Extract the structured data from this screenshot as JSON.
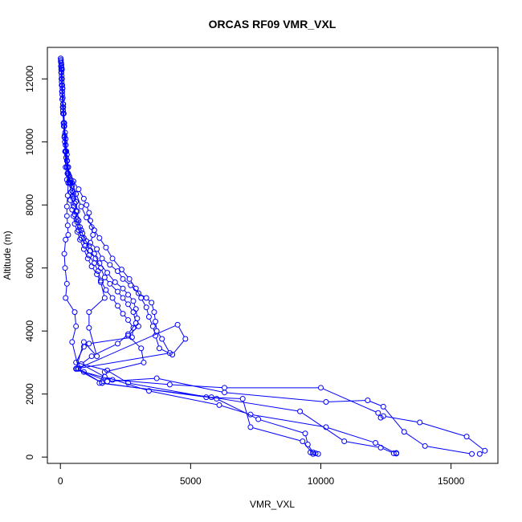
{
  "chart_data": {
    "type": "line",
    "title": "ORCAS RF09 VMR_VXL",
    "xlabel": "VMR_VXL",
    "ylabel": "Altitude (m)",
    "xlim": [
      -500,
      16800
    ],
    "ylim": [
      -200,
      13000
    ],
    "xticks": [
      0,
      5000,
      10000,
      15000
    ],
    "yticks": [
      0,
      2000,
      4000,
      6000,
      8000,
      10000,
      12000
    ],
    "grid": false,
    "color": "#0000ff",
    "series": [
      {
        "values": [
          [
            10,
            12650
          ],
          [
            15,
            12550
          ],
          [
            20,
            12400
          ],
          [
            30,
            12200
          ],
          [
            40,
            12000
          ],
          [
            50,
            11800
          ],
          [
            60,
            11600
          ],
          [
            70,
            11350
          ],
          [
            90,
            11100
          ],
          [
            100,
            10900
          ],
          [
            120,
            10600
          ],
          [
            150,
            10150
          ],
          [
            180,
            9700
          ],
          [
            200,
            9200
          ],
          [
            250,
            8800
          ],
          [
            300,
            8700
          ],
          [
            500,
            8750
          ],
          [
            700,
            8500
          ],
          [
            900,
            8200
          ],
          [
            1000,
            8000
          ],
          [
            1100,
            7750
          ],
          [
            1150,
            7500
          ],
          [
            1200,
            7300
          ],
          [
            1250,
            7050
          ],
          [
            1150,
            6800
          ],
          [
            1400,
            6600
          ],
          [
            1600,
            6300
          ],
          [
            1900,
            6100
          ],
          [
            2200,
            5900
          ],
          [
            2400,
            5650
          ],
          [
            2700,
            5450
          ],
          [
            3000,
            5200
          ],
          [
            3300,
            5050
          ],
          [
            3500,
            4900
          ],
          [
            3600,
            4600
          ],
          [
            3650,
            4300
          ],
          [
            3700,
            4000
          ],
          [
            3900,
            3750
          ],
          [
            4200,
            3300
          ],
          [
            600,
            2800
          ],
          [
            900,
            2700
          ],
          [
            2000,
            2450
          ],
          [
            4200,
            2300
          ],
          [
            6300,
            2200
          ],
          [
            10000,
            2200
          ],
          [
            12200,
            1400
          ],
          [
            12300,
            1250
          ],
          [
            12400,
            1300
          ],
          [
            13800,
            1100
          ],
          [
            15600,
            650
          ],
          [
            16300,
            200
          ],
          [
            16100,
            100
          ]
        ]
      },
      {
        "values": [
          [
            20,
            12600
          ],
          [
            30,
            12300
          ],
          [
            50,
            11900
          ],
          [
            70,
            11500
          ],
          [
            100,
            11000
          ],
          [
            130,
            10600
          ],
          [
            160,
            10200
          ],
          [
            200,
            9700
          ],
          [
            250,
            9200
          ],
          [
            350,
            8800
          ],
          [
            450,
            8700
          ],
          [
            600,
            8350
          ],
          [
            800,
            7950
          ],
          [
            1000,
            7600
          ],
          [
            1300,
            7200
          ],
          [
            1500,
            6950
          ],
          [
            1750,
            6650
          ],
          [
            2000,
            6300
          ],
          [
            2350,
            5950
          ],
          [
            2650,
            5650
          ],
          [
            2900,
            5350
          ],
          [
            3100,
            5050
          ],
          [
            3300,
            4750
          ],
          [
            3400,
            4450
          ],
          [
            3550,
            4150
          ],
          [
            3650,
            3850
          ],
          [
            3800,
            3450
          ],
          [
            4300,
            3250
          ],
          [
            4800,
            3750
          ],
          [
            4500,
            4200
          ],
          [
            650,
            2800
          ],
          [
            1800,
            2400
          ],
          [
            3700,
            2500
          ],
          [
            6300,
            2050
          ],
          [
            10200,
            1750
          ],
          [
            11800,
            1800
          ],
          [
            12400,
            1600
          ],
          [
            13200,
            800
          ],
          [
            14000,
            350
          ],
          [
            15800,
            100
          ]
        ]
      },
      {
        "values": [
          [
            30,
            12500
          ],
          [
            50,
            12100
          ],
          [
            80,
            11700
          ],
          [
            110,
            11200
          ],
          [
            150,
            10600
          ],
          [
            200,
            10100
          ],
          [
            250,
            9600
          ],
          [
            300,
            9200
          ],
          [
            350,
            8900
          ],
          [
            400,
            8700
          ],
          [
            500,
            8400
          ],
          [
            600,
            8100
          ],
          [
            650,
            7800
          ],
          [
            700,
            7500
          ],
          [
            800,
            7200
          ],
          [
            900,
            6950
          ],
          [
            1100,
            6700
          ],
          [
            1300,
            6450
          ],
          [
            1500,
            6150
          ],
          [
            1800,
            5850
          ],
          [
            2100,
            5550
          ],
          [
            2400,
            5350
          ],
          [
            2600,
            5150
          ],
          [
            2800,
            4950
          ],
          [
            2900,
            4700
          ],
          [
            2950,
            4400
          ],
          [
            3000,
            4150
          ],
          [
            2600,
            3850
          ],
          [
            3100,
            3450
          ],
          [
            3200,
            3000
          ],
          [
            1700,
            2700
          ],
          [
            1500,
            2350
          ],
          [
            5800,
            1900
          ],
          [
            9200,
            1450
          ],
          [
            10900,
            500
          ],
          [
            12300,
            300
          ],
          [
            12800,
            120
          ],
          [
            12900,
            130
          ]
        ]
      },
      {
        "values": [
          [
            40,
            12450
          ],
          [
            60,
            12000
          ],
          [
            90,
            11400
          ],
          [
            130,
            10900
          ],
          [
            180,
            10300
          ],
          [
            230,
            9700
          ],
          [
            300,
            9200
          ],
          [
            400,
            8800
          ],
          [
            450,
            8600
          ],
          [
            500,
            8300
          ],
          [
            550,
            8050
          ],
          [
            600,
            7800
          ],
          [
            650,
            7550
          ],
          [
            750,
            7300
          ],
          [
            850,
            7100
          ],
          [
            1000,
            6850
          ],
          [
            1150,
            6550
          ],
          [
            1350,
            6300
          ],
          [
            1550,
            6000
          ],
          [
            1700,
            5700
          ],
          [
            1900,
            5500
          ],
          [
            2200,
            5250
          ],
          [
            2400,
            5050
          ],
          [
            2600,
            4850
          ],
          [
            2800,
            4600
          ],
          [
            2900,
            4250
          ],
          [
            2600,
            3900
          ],
          [
            2200,
            3600
          ],
          [
            1200,
            3200
          ],
          [
            800,
            2950
          ],
          [
            1700,
            2550
          ],
          [
            3400,
            2100
          ],
          [
            6100,
            1650
          ],
          [
            7300,
            1350
          ],
          [
            10200,
            950
          ],
          [
            12100,
            450
          ],
          [
            12900,
            110
          ]
        ]
      },
      {
        "values": [
          [
            50,
            12350
          ],
          [
            70,
            11800
          ],
          [
            100,
            11200
          ],
          [
            150,
            10500
          ],
          [
            200,
            9900
          ],
          [
            250,
            9400
          ],
          [
            300,
            9000
          ],
          [
            350,
            8700
          ],
          [
            450,
            8450
          ],
          [
            500,
            8200
          ],
          [
            520,
            7950
          ],
          [
            550,
            7700
          ],
          [
            650,
            7450
          ],
          [
            700,
            7200
          ],
          [
            800,
            6950
          ],
          [
            950,
            6700
          ],
          [
            1100,
            6400
          ],
          [
            1300,
            6150
          ],
          [
            1450,
            5900
          ],
          [
            1550,
            5600
          ],
          [
            1750,
            5300
          ],
          [
            2000,
            5050
          ],
          [
            2200,
            4800
          ],
          [
            2400,
            4550
          ],
          [
            2600,
            4350
          ],
          [
            2800,
            4100
          ],
          [
            2750,
            3800
          ],
          [
            1100,
            3600
          ],
          [
            900,
            3500
          ],
          [
            600,
            3000
          ],
          [
            1800,
            2750
          ],
          [
            2600,
            2350
          ],
          [
            6000,
            1850
          ],
          [
            7600,
            1200
          ],
          [
            9400,
            750
          ],
          [
            9500,
            400
          ],
          [
            9700,
            150
          ],
          [
            9900,
            100
          ]
        ]
      },
      {
        "values": [
          [
            60,
            12300
          ],
          [
            80,
            11700
          ],
          [
            110,
            11100
          ],
          [
            150,
            10500
          ],
          [
            200,
            9900
          ],
          [
            260,
            9400
          ],
          [
            320,
            8950
          ],
          [
            380,
            8700
          ],
          [
            400,
            8400
          ],
          [
            380,
            8150
          ],
          [
            450,
            7850
          ],
          [
            500,
            7650
          ],
          [
            550,
            7400
          ],
          [
            650,
            7150
          ],
          [
            750,
            6900
          ],
          [
            900,
            6600
          ],
          [
            1050,
            6300
          ],
          [
            1200,
            6050
          ],
          [
            1400,
            5800
          ],
          [
            1550,
            5550
          ],
          [
            1700,
            5050
          ],
          [
            1100,
            4600
          ],
          [
            1100,
            4100
          ],
          [
            1400,
            3200
          ],
          [
            900,
            3650
          ],
          [
            600,
            2800
          ],
          [
            1600,
            2350
          ],
          [
            5600,
            1900
          ],
          [
            7000,
            1850
          ],
          [
            7300,
            950
          ],
          [
            9300,
            500
          ],
          [
            9700,
            100
          ],
          [
            9800,
            120
          ],
          [
            9600,
            150
          ]
        ]
      },
      {
        "values": [
          [
            40,
            12200
          ],
          [
            70,
            11600
          ],
          [
            100,
            11000
          ],
          [
            130,
            10500
          ],
          [
            170,
            10000
          ],
          [
            220,
            9500
          ],
          [
            270,
            9000
          ],
          [
            300,
            8700
          ],
          [
            280,
            8300
          ],
          [
            250,
            7950
          ],
          [
            250,
            7650
          ],
          [
            280,
            7350
          ],
          [
            300,
            7050
          ],
          [
            200,
            6900
          ],
          [
            150,
            6450
          ],
          [
            180,
            6000
          ],
          [
            250,
            5500
          ],
          [
            200,
            5050
          ],
          [
            550,
            4600
          ],
          [
            600,
            4150
          ],
          [
            450,
            3650
          ],
          [
            700,
            2800
          ],
          [
            1600,
            2350
          ]
        ]
      }
    ]
  }
}
